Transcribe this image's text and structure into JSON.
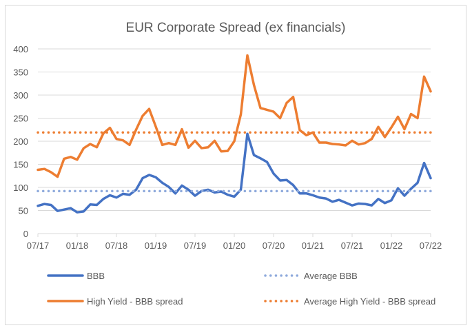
{
  "chart_data": {
    "type": "line",
    "title": "EUR Corporate Spread (ex financials)",
    "xlabel": "",
    "ylabel": "",
    "ylim": [
      0,
      400
    ],
    "yticks": [
      "0",
      "50",
      "100",
      "150",
      "200",
      "250",
      "300",
      "350",
      "400"
    ],
    "xticks": [
      "07/17",
      "01/18",
      "07/18",
      "01/19",
      "07/19",
      "01/20",
      "07/20",
      "01/21",
      "07/21",
      "01/22",
      "07/22"
    ],
    "x_unit": "monthly, 07/2017 to 07/2022",
    "grid": true,
    "legend_position": "bottom",
    "series": [
      {
        "name": "BBB",
        "color": "#4472C4",
        "style": "solid",
        "values": [
          60,
          64,
          62,
          49,
          52,
          55,
          46,
          48,
          63,
          62,
          75,
          83,
          78,
          86,
          84,
          95,
          120,
          127,
          122,
          110,
          101,
          87,
          104,
          95,
          82,
          92,
          95,
          89,
          91,
          84,
          80,
          95,
          216,
          170,
          163,
          155,
          130,
          115,
          116,
          105,
          87,
          87,
          83,
          78,
          76,
          69,
          73,
          67,
          61,
          65,
          64,
          61,
          75,
          66,
          72,
          98,
          82,
          97,
          110,
          153,
          120
        ]
      },
      {
        "name": "Average BBB",
        "color": "#8FAADC",
        "style": "dotted",
        "constant": 92
      },
      {
        "name": "High Yield -  BBB spread",
        "color": "#ED7D31",
        "style": "solid",
        "values": [
          138,
          140,
          133,
          123,
          162,
          166,
          160,
          185,
          194,
          187,
          217,
          229,
          205,
          202,
          192,
          225,
          255,
          270,
          232,
          192,
          196,
          192,
          226,
          186,
          201,
          185,
          187,
          201,
          178,
          179,
          200,
          258,
          386,
          322,
          272,
          268,
          264,
          250,
          283,
          296,
          224,
          213,
          219,
          197,
          197,
          194,
          193,
          191,
          201,
          193,
          196,
          205,
          231,
          209,
          230,
          253,
          226,
          259,
          250,
          340,
          308
        ]
      },
      {
        "name": "Average High Yield -  BBB spread",
        "color": "#ED7D31",
        "style": "dotted",
        "constant": 219
      }
    ]
  }
}
